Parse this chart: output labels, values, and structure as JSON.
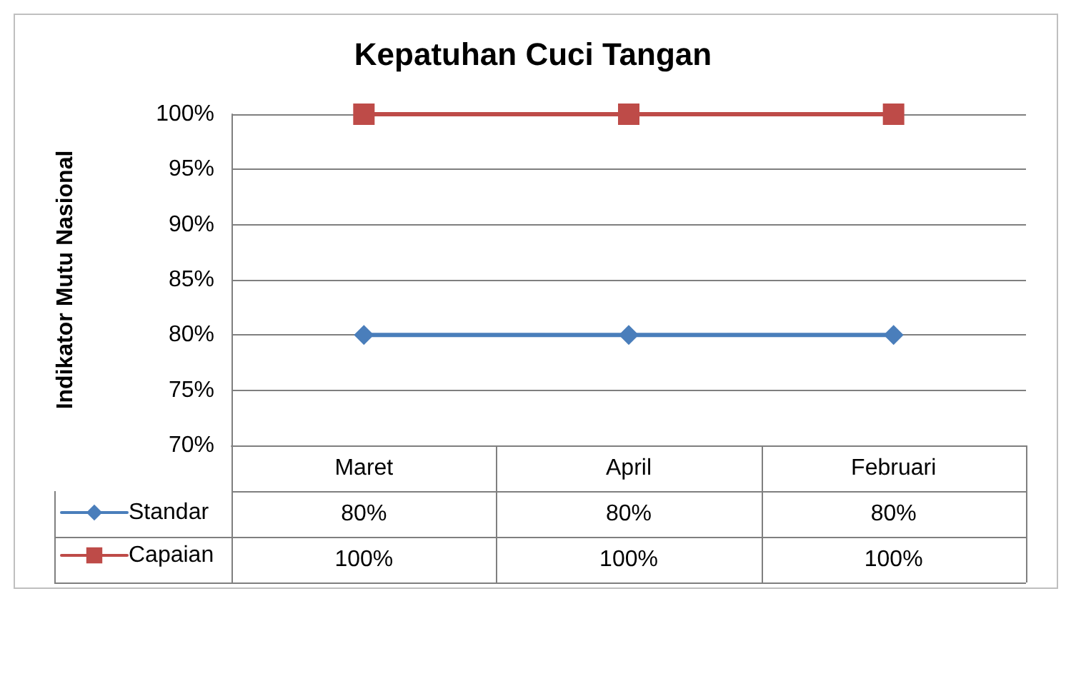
{
  "chart_data": {
    "type": "line",
    "title": "Kepatuhan Cuci Tangan",
    "ylabel": "Indikator Mutu Nasional",
    "categories": [
      "Maret",
      "April",
      "Februari"
    ],
    "series": [
      {
        "name": "Standar",
        "color": "#4a7ebb",
        "marker": "diamond",
        "values": [
          80,
          80,
          80
        ],
        "value_labels": [
          "80%",
          "80%",
          "80%"
        ]
      },
      {
        "name": "Capaian",
        "color": "#be4b48",
        "marker": "square",
        "values": [
          100,
          100,
          100
        ],
        "value_labels": [
          "100%",
          "100%",
          "100%"
        ]
      }
    ],
    "ylim": [
      70,
      100
    ],
    "yticks": [
      {
        "value": 70,
        "label": "70%"
      },
      {
        "value": 75,
        "label": "75%"
      },
      {
        "value": 80,
        "label": "80%"
      },
      {
        "value": 85,
        "label": "85%"
      },
      {
        "value": 90,
        "label": "90%"
      },
      {
        "value": 95,
        "label": "95%"
      },
      {
        "value": 100,
        "label": "100%"
      }
    ],
    "grid": "y",
    "legend": "bottom left",
    "line_style": "solid"
  }
}
